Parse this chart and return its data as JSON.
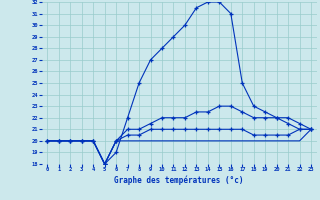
{
  "xlabel": "Graphe des températures (°c)",
  "bg_color": "#cce8ec",
  "grid_color": "#99cccc",
  "line_color": "#0033bb",
  "hours": [
    0,
    1,
    2,
    3,
    4,
    5,
    6,
    7,
    8,
    9,
    10,
    11,
    12,
    13,
    14,
    15,
    16,
    17,
    18,
    19,
    20,
    21,
    22,
    23
  ],
  "temp_max": [
    20,
    20,
    20,
    20,
    20,
    18,
    19,
    22,
    25,
    27,
    28,
    29,
    30,
    31.5,
    32,
    32,
    31,
    25,
    23,
    22.5,
    22,
    21.5,
    21,
    21
  ],
  "temp_avg": [
    20,
    20,
    20,
    20,
    20,
    18,
    20,
    21,
    21,
    21.5,
    22,
    22,
    22,
    22.5,
    22.5,
    23,
    23,
    22.5,
    22,
    22,
    22,
    22,
    21.5,
    21
  ],
  "temp_min": [
    20,
    20,
    20,
    20,
    20,
    18,
    20,
    20.5,
    20.5,
    21,
    21,
    21,
    21,
    21,
    21,
    21,
    21,
    21,
    20.5,
    20.5,
    20.5,
    20.5,
    21,
    21
  ],
  "temp_dew": [
    20,
    20,
    20,
    20,
    20,
    18,
    20,
    20,
    20,
    20,
    20,
    20,
    20,
    20,
    20,
    20,
    20,
    20,
    20,
    20,
    20,
    20,
    20,
    21
  ],
  "ylim_min": 18,
  "ylim_max": 32,
  "yticks": [
    18,
    19,
    20,
    21,
    22,
    23,
    24,
    25,
    26,
    27,
    28,
    29,
    30,
    31,
    32
  ]
}
